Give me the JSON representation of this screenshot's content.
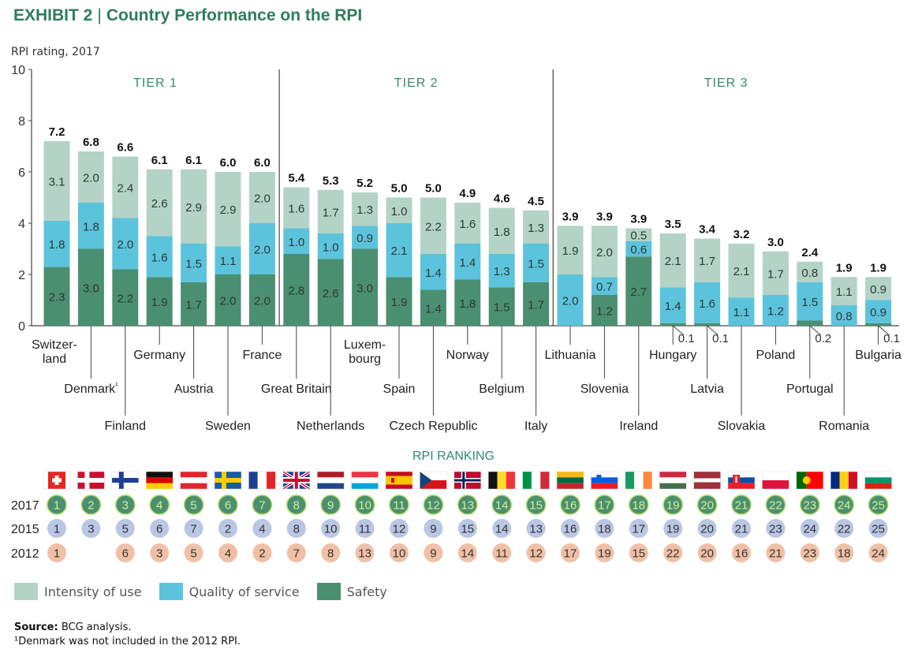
{
  "header": {
    "exhibit": "EXHIBIT 2",
    "separator": "|",
    "title": "Country Performance on the RPI"
  },
  "chart_data": {
    "type": "bar",
    "stacked": true,
    "ylabel": "RPI rating, 2017",
    "ylim": [
      0,
      10
    ],
    "yticks": [
      0,
      2,
      4,
      6,
      8,
      10
    ],
    "tiers": [
      {
        "label": "TIER 1",
        "countries": 7
      },
      {
        "label": "TIER 2",
        "countries": 8
      },
      {
        "label": "TIER 3",
        "countries": 10
      }
    ],
    "categories": [
      "Switzer-land",
      "Denmark¹",
      "Finland",
      "Germany",
      "Austria",
      "Sweden",
      "France",
      "Great Britain",
      "Netherlands",
      "Luxem-bourg",
      "Spain",
      "Czech Republic",
      "Norway",
      "Belgium",
      "Italy",
      "Lithuania",
      "Slovenia",
      "Ireland",
      "Hungary",
      "Latvia",
      "Slovakia",
      "Poland",
      "Portugal",
      "Romania",
      "Bulgaria"
    ],
    "category_labels": [
      [
        "Switzer-",
        "land"
      ],
      [
        "Denmark",
        "¹"
      ],
      [
        "Finland"
      ],
      [
        "Germany"
      ],
      [
        "Austria"
      ],
      [
        "Sweden"
      ],
      [
        "France"
      ],
      [
        "Great Britain"
      ],
      [
        "Netherlands"
      ],
      [
        "Luxem-",
        "bourg"
      ],
      [
        "Spain"
      ],
      [
        "Czech Republic"
      ],
      [
        "Norway"
      ],
      [
        "Belgium"
      ],
      [
        "Italy"
      ],
      [
        "Lithuania"
      ],
      [
        "Slovenia"
      ],
      [
        "Ireland"
      ],
      [
        "Hungary"
      ],
      [
        "Latvia"
      ],
      [
        "Slovakia"
      ],
      [
        "Poland"
      ],
      [
        "Portugal"
      ],
      [
        "Romania"
      ],
      [
        "Bulgaria"
      ]
    ],
    "series": [
      {
        "name": "Safety",
        "color": "#4b8f72",
        "values": [
          2.3,
          3.0,
          2.2,
          1.9,
          1.7,
          2.0,
          2.0,
          2.8,
          2.6,
          3.0,
          1.9,
          1.4,
          1.8,
          1.5,
          1.7,
          0,
          1.2,
          2.7,
          0.1,
          0.1,
          0,
          0,
          0.2,
          0,
          0.1
        ]
      },
      {
        "name": "Quality of service",
        "color": "#5cc3dc",
        "values": [
          1.8,
          1.8,
          2.0,
          1.6,
          1.5,
          1.1,
          2.0,
          1.0,
          1.0,
          0.9,
          2.1,
          1.4,
          1.4,
          1.3,
          1.5,
          2.0,
          0.7,
          0.6,
          1.4,
          1.6,
          1.1,
          1.2,
          1.5,
          0.8,
          0.9
        ]
      },
      {
        "name": "Intensity of use",
        "color": "#b3d3c6",
        "values": [
          3.1,
          2.0,
          2.4,
          2.6,
          2.9,
          2.9,
          2.0,
          1.6,
          1.7,
          1.3,
          1.0,
          2.2,
          1.6,
          1.8,
          1.3,
          1.9,
          2.0,
          0.5,
          2.1,
          1.7,
          2.1,
          1.7,
          0.8,
          1.1,
          0.9
        ]
      }
    ],
    "totals": [
      "7.2",
      "6.8",
      "6.6",
      "6.1",
      "6.1",
      "6.0",
      "6.0",
      "5.4",
      "5.3",
      "5.2",
      "5.0",
      "5.0",
      "4.9",
      "4.6",
      "4.5",
      "3.9",
      "3.9",
      "3.9",
      "3.5",
      "3.4",
      "3.2",
      "3.0",
      "2.4",
      "1.9",
      "1.9"
    ],
    "ranking": {
      "title": "RPI RANKING",
      "rows": [
        {
          "year": "2017",
          "values": [
            "1",
            "2",
            "3",
            "4",
            "5",
            "6",
            "7",
            "8",
            "9",
            "10",
            "11",
            "12",
            "13",
            "14",
            "15",
            "16",
            "17",
            "18",
            "19",
            "20",
            "21",
            "22",
            "23",
            "24",
            "25"
          ]
        },
        {
          "year": "2015",
          "values": [
            "1",
            "3",
            "5",
            "6",
            "7",
            "2",
            "4",
            "8",
            "10",
            "11",
            "12",
            "9",
            "15",
            "14",
            "13",
            "16",
            "18",
            "17",
            "19",
            "20",
            "21",
            "23",
            "24",
            "22",
            "25"
          ]
        },
        {
          "year": "2012",
          "values": [
            "1",
            "",
            "6",
            "3",
            "5",
            "4",
            "2",
            "7",
            "8",
            "13",
            "10",
            "9",
            "14",
            "11",
            "12",
            "17",
            "19",
            "15",
            "22",
            "20",
            "16",
            "21",
            "23",
            "18",
            "24"
          ]
        }
      ],
      "colors": {
        "2017": "#4b8f72",
        "2015": "#b9c6e4",
        "2012": "#f0c0a6"
      },
      "text_colors": {
        "2017": "#d8ef8a",
        "2015": "#333333",
        "2012": "#333333"
      }
    },
    "flags": [
      "switzerland",
      "denmark",
      "finland",
      "germany",
      "austria",
      "sweden",
      "france",
      "great-britain",
      "netherlands",
      "luxembourg",
      "spain",
      "czech-republic",
      "norway",
      "belgium",
      "italy",
      "lithuania",
      "slovenia",
      "ireland",
      "hungary",
      "latvia",
      "slovakia",
      "poland",
      "portugal",
      "romania",
      "bulgaria"
    ]
  },
  "legend": {
    "items": [
      {
        "label": "Intensity of use",
        "color": "#b3d3c6"
      },
      {
        "label": "Quality of service",
        "color": "#5cc3dc"
      },
      {
        "label": "Safety",
        "color": "#4b8f72"
      }
    ]
  },
  "footer": {
    "source_label": "Source:",
    "source_text": " BCG analysis.",
    "note": "¹Denmark was not included in the 2012 RPI."
  }
}
